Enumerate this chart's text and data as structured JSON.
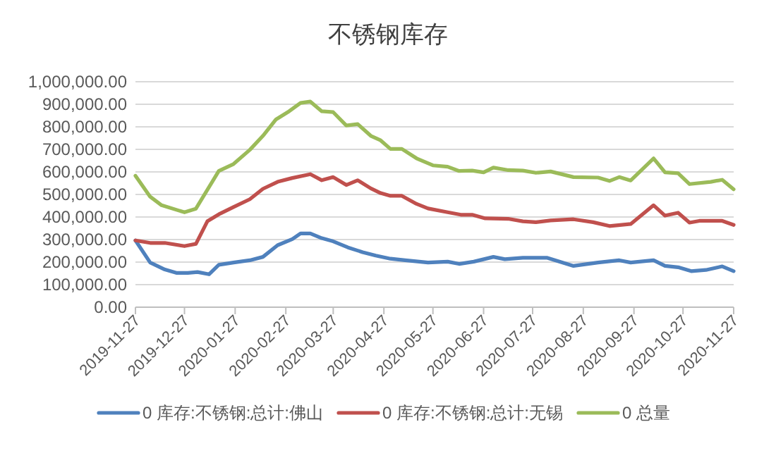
{
  "chart_data": {
    "type": "line",
    "title": "不锈钢库存",
    "legend": "bottom",
    "grid": "y",
    "marker": "none",
    "line_style": "solid",
    "xlim": [
      "2019-11-27",
      "2020-11-27"
    ],
    "xticks": [
      "2019-11-27",
      "2019-12-27",
      "2020-01-27",
      "2020-02-27",
      "2020-03-27",
      "2020-04-27",
      "2020-05-27",
      "2020-06-27",
      "2020-07-27",
      "2020-08-27",
      "2020-09-27",
      "2020-10-27",
      "2020-11-27"
    ],
    "ylim": [
      0,
      1000000
    ],
    "yticks": [
      {
        "value": 0,
        "label": "0.00"
      },
      {
        "value": 100000,
        "label": "100,000.00"
      },
      {
        "value": 200000,
        "label": "200,000.00"
      },
      {
        "value": 300000,
        "label": "300,000.00"
      },
      {
        "value": 400000,
        "label": "400,000.00"
      },
      {
        "value": 500000,
        "label": "500,000.00"
      },
      {
        "value": 600000,
        "label": "600,000.00"
      },
      {
        "value": 700000,
        "label": "700,000.00"
      },
      {
        "value": 800000,
        "label": "800,000.00"
      },
      {
        "value": 900000,
        "label": "900,000.00"
      },
      {
        "value": 1000000,
        "label": "1,000,000.00"
      }
    ],
    "series": [
      {
        "name": "0 库存:不锈钢:总计:佛山",
        "color": "#4f81bd",
        "x": [
          "2019-11-27",
          "2019-12-06",
          "2019-12-15",
          "2019-12-22",
          "2019-12-29",
          "2020-01-04",
          "2020-01-11",
          "2020-01-17",
          "2020-01-26",
          "2020-02-05",
          "2020-02-13",
          "2020-02-22",
          "2020-03-02",
          "2020-03-07",
          "2020-03-13",
          "2020-03-20",
          "2020-03-27",
          "2020-04-05",
          "2020-04-14",
          "2020-04-22",
          "2020-05-01",
          "2020-05-10",
          "2020-05-24",
          "2020-06-05",
          "2020-06-12",
          "2020-06-21",
          "2020-07-03",
          "2020-07-10",
          "2020-07-21",
          "2020-08-05",
          "2020-08-21",
          "2020-09-05",
          "2020-09-18",
          "2020-09-25",
          "2020-10-09",
          "2020-10-16",
          "2020-10-24",
          "2020-11-01",
          "2020-11-10",
          "2020-11-20",
          "2020-11-27"
        ],
        "values": [
          296000,
          198000,
          167000,
          152000,
          152000,
          156000,
          146000,
          188000,
          198000,
          208000,
          223000,
          275000,
          302000,
          327000,
          327000,
          306000,
          292000,
          265000,
          244000,
          229000,
          215000,
          208000,
          198000,
          202000,
          192000,
          202000,
          223000,
          213000,
          219000,
          219000,
          183000,
          198000,
          208000,
          198000,
          208000,
          183000,
          177000,
          160000,
          165000,
          181000,
          160000
        ]
      },
      {
        "name": "0 库存:不锈钢:总计:无锡",
        "color": "#c0504d",
        "x": [
          "2019-11-27",
          "2019-12-06",
          "2019-12-15",
          "2019-12-27",
          "2020-01-03",
          "2020-01-10",
          "2020-01-17",
          "2020-01-26",
          "2020-02-05",
          "2020-02-13",
          "2020-02-22",
          "2020-03-02",
          "2020-03-13",
          "2020-03-20",
          "2020-03-27",
          "2020-04-04",
          "2020-04-11",
          "2020-04-19",
          "2020-04-25",
          "2020-05-01",
          "2020-05-08",
          "2020-05-17",
          "2020-05-24",
          "2020-06-05",
          "2020-06-13",
          "2020-06-20",
          "2020-06-28",
          "2020-07-12",
          "2020-07-21",
          "2020-07-29",
          "2020-08-07",
          "2020-08-21",
          "2020-09-02",
          "2020-09-12",
          "2020-09-25",
          "2020-10-09",
          "2020-10-16",
          "2020-10-24",
          "2020-10-31",
          "2020-11-06",
          "2020-11-20",
          "2020-11-27"
        ],
        "values": [
          296000,
          285000,
          285000,
          271000,
          281000,
          381000,
          412000,
          444000,
          479000,
          525000,
          556000,
          573000,
          590000,
          563000,
          577000,
          542000,
          563000,
          527000,
          506000,
          494000,
          494000,
          458000,
          438000,
          421000,
          410000,
          410000,
          394000,
          392000,
          381000,
          377000,
          385000,
          390000,
          377000,
          360000,
          369000,
          452000,
          406000,
          419000,
          375000,
          383000,
          383000,
          365000
        ]
      },
      {
        "name": "0 总量",
        "color": "#9bbb59",
        "x": [
          "2019-11-27",
          "2019-12-06",
          "2019-12-13",
          "2019-12-27",
          "2020-01-03",
          "2020-01-17",
          "2020-01-26",
          "2020-02-05",
          "2020-02-13",
          "2020-02-21",
          "2020-02-29",
          "2020-03-07",
          "2020-03-13",
          "2020-03-20",
          "2020-03-27",
          "2020-04-04",
          "2020-04-11",
          "2020-04-19",
          "2020-04-25",
          "2020-05-01",
          "2020-05-08",
          "2020-05-17",
          "2020-05-27",
          "2020-06-05",
          "2020-06-12",
          "2020-06-20",
          "2020-06-27",
          "2020-07-03",
          "2020-07-12",
          "2020-07-21",
          "2020-07-29",
          "2020-08-07",
          "2020-08-21",
          "2020-09-05",
          "2020-09-12",
          "2020-09-18",
          "2020-09-25",
          "2020-10-09",
          "2020-10-16",
          "2020-10-24",
          "2020-10-31",
          "2020-11-13",
          "2020-11-20",
          "2020-11-27"
        ],
        "values": [
          583000,
          490000,
          452000,
          421000,
          437000,
          604000,
          635000,
          698000,
          760000,
          833000,
          869000,
          906000,
          912000,
          869000,
          865000,
          806000,
          812000,
          760000,
          740000,
          702000,
          702000,
          660000,
          629000,
          623000,
          604000,
          606000,
          598000,
          619000,
          608000,
          606000,
          596000,
          602000,
          577000,
          575000,
          560000,
          577000,
          562000,
          660000,
          598000,
          594000,
          546000,
          556000,
          565000,
          523000
        ]
      }
    ]
  }
}
